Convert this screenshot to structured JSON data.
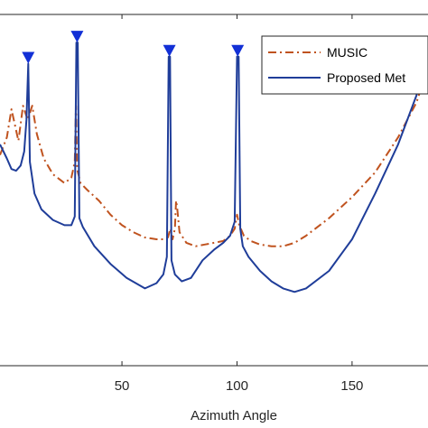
{
  "chart_data": {
    "type": "line",
    "xlabel": "Azimuth Angle",
    "ylabel": "",
    "xlim": [
      -3,
      183
    ],
    "ylim": [
      0,
      1
    ],
    "x_ticks": [
      50,
      100,
      150
    ],
    "grid": false,
    "legend_position": "top-right",
    "series": [
      {
        "name": "MUSIC",
        "color": "#c0531f",
        "style": "dash-dot",
        "x": [
          -3,
          0,
          2,
          5,
          7,
          9,
          11,
          13,
          16,
          20,
          25,
          28,
          29.5,
          30,
          30.5,
          32,
          35,
          40,
          45,
          50,
          55,
          60,
          65,
          68,
          70,
          71,
          72,
          73,
          73.5,
          74,
          75,
          78,
          82,
          86,
          90,
          94,
          97,
          99,
          100,
          101,
          103,
          106,
          110,
          115,
          120,
          125,
          130,
          140,
          150,
          160,
          170,
          178,
          183
        ],
        "y": [
          0.6,
          0.65,
          0.73,
          0.64,
          0.74,
          0.7,
          0.74,
          0.66,
          0.59,
          0.545,
          0.52,
          0.535,
          0.58,
          0.74,
          0.56,
          0.52,
          0.5,
          0.47,
          0.43,
          0.4,
          0.38,
          0.365,
          0.36,
          0.36,
          0.365,
          0.39,
          0.36,
          0.39,
          0.47,
          0.45,
          0.38,
          0.35,
          0.34,
          0.345,
          0.35,
          0.355,
          0.37,
          0.39,
          0.43,
          0.4,
          0.37,
          0.355,
          0.345,
          0.34,
          0.34,
          0.35,
          0.37,
          0.42,
          0.48,
          0.55,
          0.65,
          0.75,
          0.85
        ]
      },
      {
        "name": "Proposed Met",
        "color": "#1f3d99",
        "style": "solid",
        "x": [
          -3,
          0,
          2,
          4,
          6,
          7.5,
          8.5,
          9.3,
          10,
          12,
          15,
          20,
          25,
          28,
          29.5,
          30.2,
          30.8,
          31.5,
          33,
          38,
          45,
          52,
          60,
          65,
          68,
          69.5,
          70.3,
          70.9,
          71.5,
          73,
          76,
          80,
          85,
          90,
          94,
          97,
          99,
          100,
          100.7,
          101.4,
          102.5,
          105,
          110,
          115,
          120,
          125,
          130,
          140,
          150,
          160,
          170,
          178,
          183
        ],
        "y": [
          0.63,
          0.59,
          0.56,
          0.555,
          0.57,
          0.61,
          0.7,
          0.86,
          0.58,
          0.49,
          0.445,
          0.415,
          0.4,
          0.4,
          0.425,
          0.92,
          0.92,
          0.42,
          0.395,
          0.34,
          0.29,
          0.25,
          0.22,
          0.235,
          0.26,
          0.31,
          0.88,
          0.88,
          0.3,
          0.26,
          0.24,
          0.25,
          0.3,
          0.33,
          0.35,
          0.37,
          0.41,
          0.88,
          0.88,
          0.39,
          0.34,
          0.31,
          0.27,
          0.24,
          0.22,
          0.21,
          0.22,
          0.27,
          0.36,
          0.49,
          0.63,
          0.77,
          0.9
        ]
      }
    ],
    "markers": {
      "color": "#1230d6",
      "shape": "triangle-down",
      "x": [
        9.3,
        30.5,
        70.6,
        100.3
      ],
      "y": [
        0.86,
        0.92,
        0.88,
        0.88
      ]
    }
  }
}
